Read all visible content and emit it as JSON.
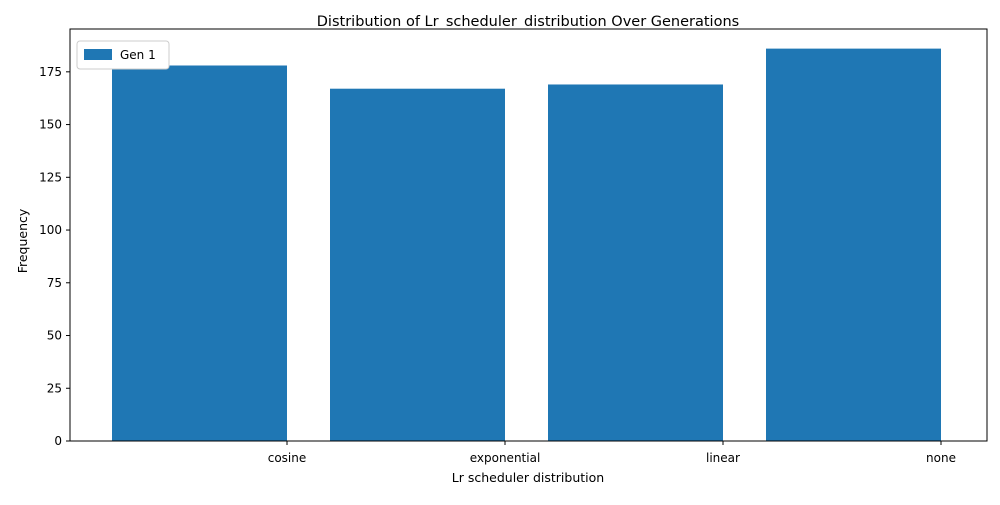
{
  "chart_data": {
    "type": "bar",
    "title": "Distribution of Lr_scheduler_distribution Over Generations",
    "xlabel": "Lr scheduler distribution",
    "ylabel": "Frequency",
    "categories": [
      "cosine",
      "exponential",
      "linear",
      "none"
    ],
    "series": [
      {
        "name": "Gen 1",
        "values": [
          178,
          167,
          169,
          186
        ],
        "color": "#1f77b4"
      }
    ],
    "ylim": [
      0,
      195.3
    ],
    "yticks": [
      0,
      25,
      50,
      75,
      100,
      125,
      150,
      175
    ],
    "legend": "top-left",
    "grid": false
  }
}
